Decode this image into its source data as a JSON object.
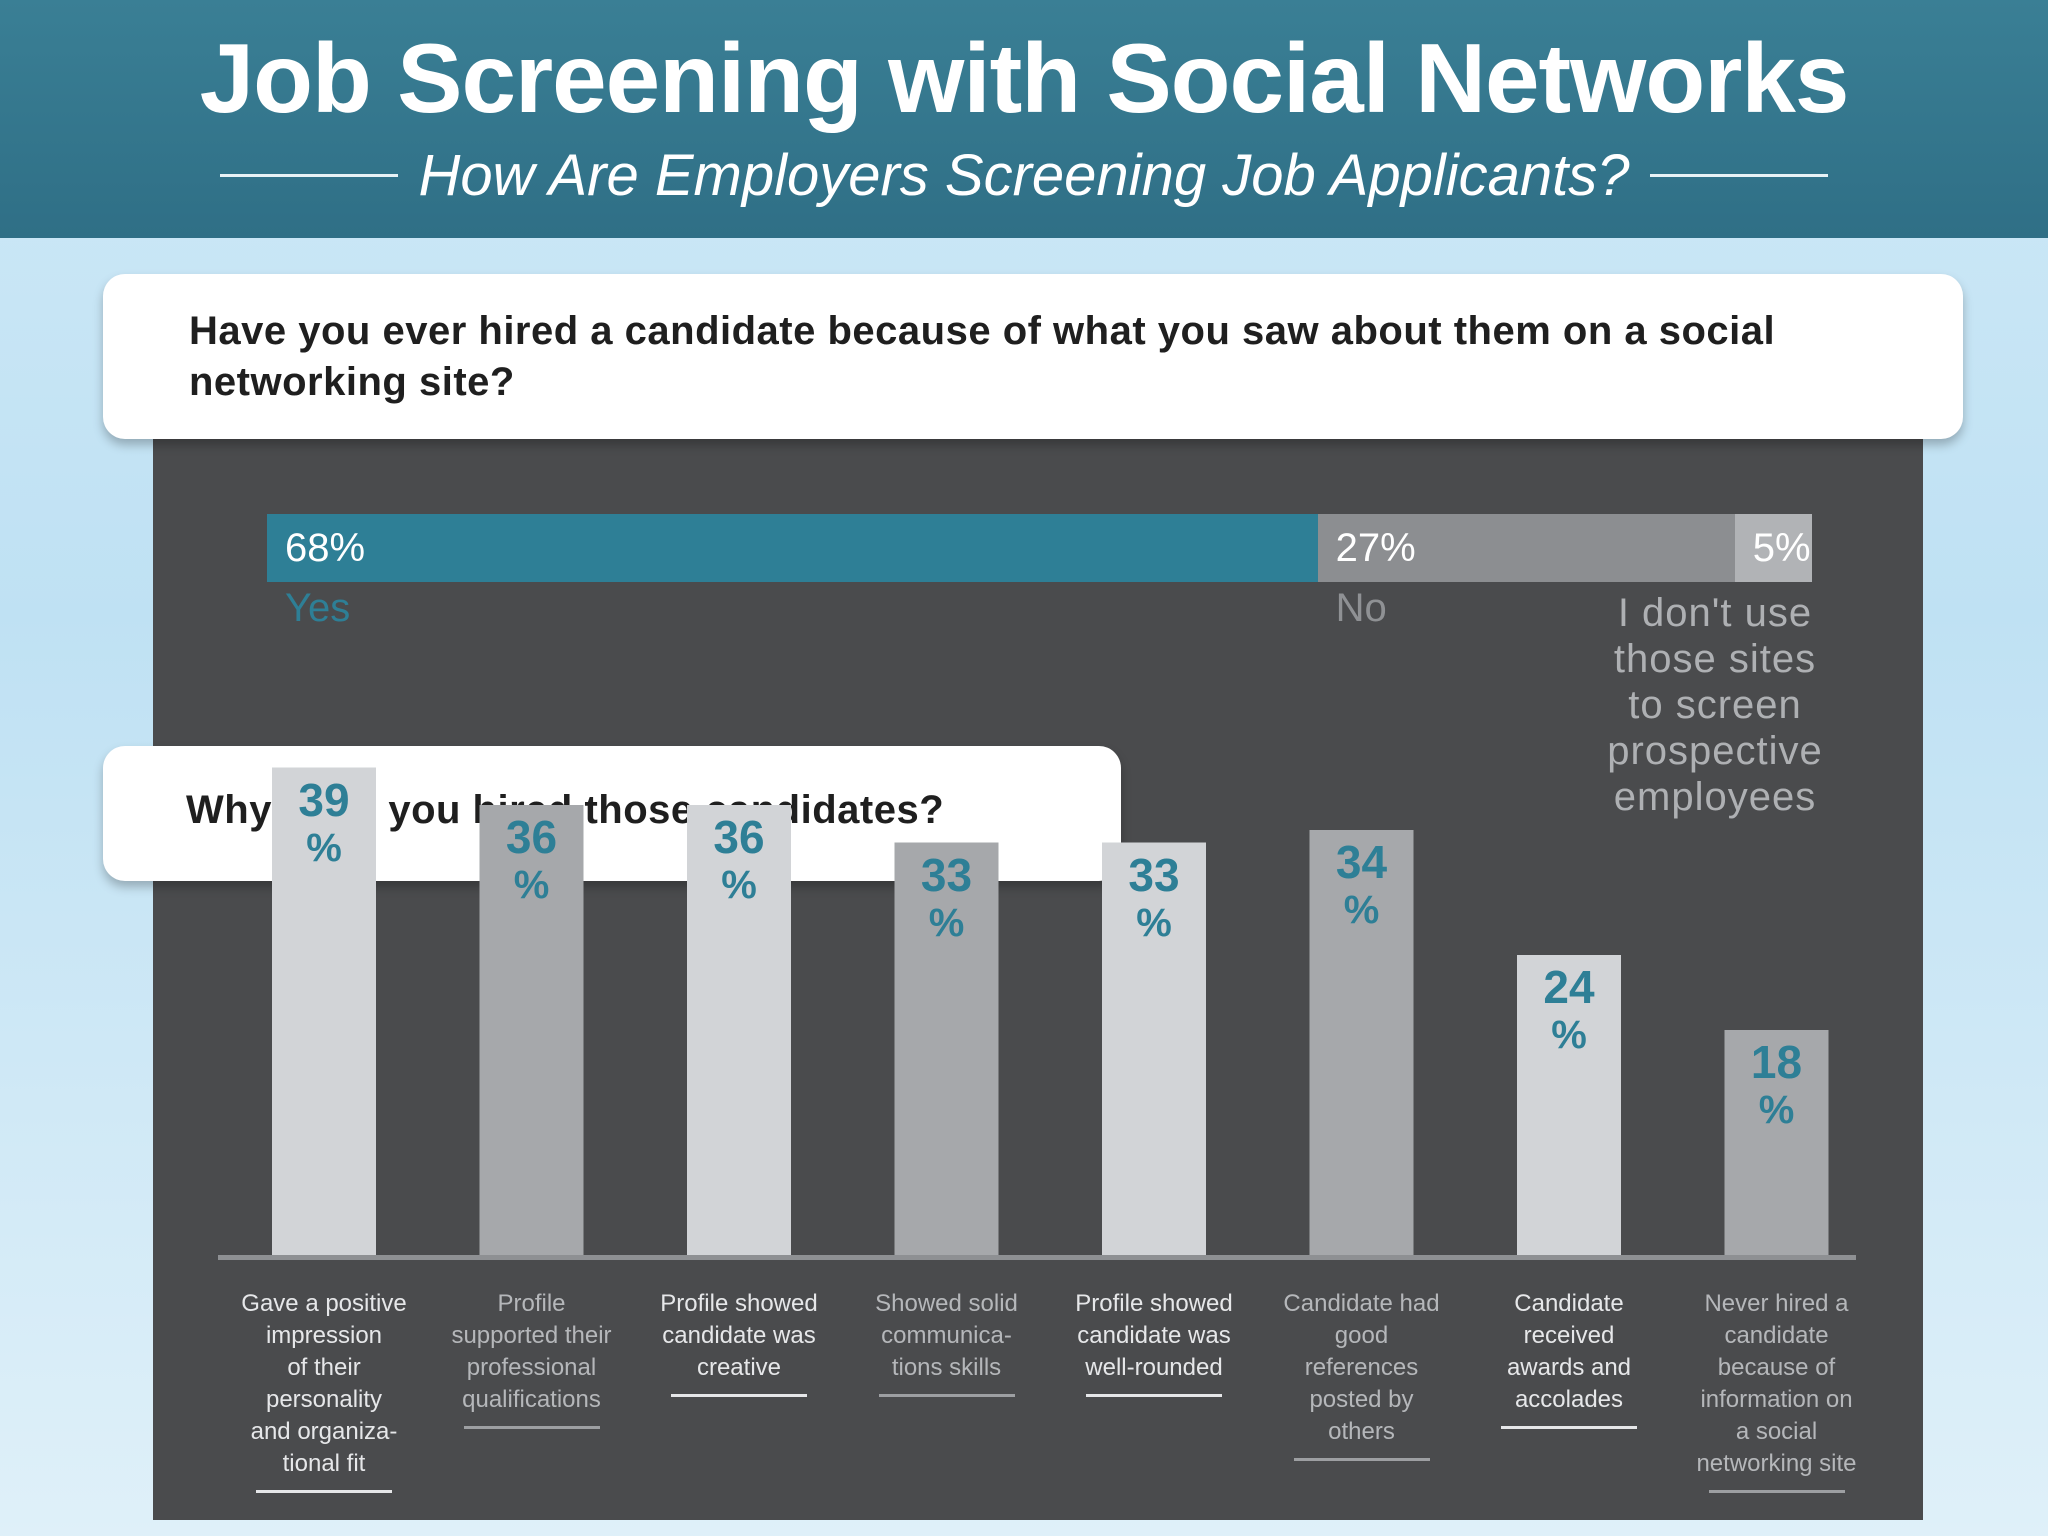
{
  "header": {
    "title": "Job Screening with Social Networks",
    "subtitle": "How Are Employers Screening Job Applicants?"
  },
  "colors": {
    "header_bg": "#2f6f86",
    "panel_bg": "#4a4b4d",
    "accent_teal": "#2e7f96",
    "bar_light": "#d2d4d7",
    "bar_dark": "#a6a8ab"
  },
  "chart_data": [
    {
      "type": "bar",
      "orientation": "stacked-horizontal",
      "title": "Have you ever hired a candidate because of what you saw about them on a social networking site?",
      "segments": [
        {
          "label": "Yes",
          "value": 68,
          "display": "68%"
        },
        {
          "label": "No",
          "value": 27,
          "display": "27%"
        },
        {
          "label": "I don't use those sites to screen prospective employees",
          "value": 5,
          "display": "5%"
        }
      ],
      "label_lines": [
        "I don't use",
        "those sites",
        "to screen",
        "prospective",
        "employees"
      ]
    },
    {
      "type": "bar",
      "title": "Why have you hired those candidates?",
      "ylim": [
        0,
        40
      ],
      "categories": [
        "Gave a positive impression of their personality and organizational fit",
        "Profile supported their professional qualifications",
        "Profile showed candidate was creative",
        "Showed solid communications skills",
        "Profile showed candidate was well-rounded",
        "Candidate had good references posted by others",
        "Candidate received awards and accolades",
        "Never hired a candidate because of information on a social networking site"
      ],
      "values": [
        39,
        36,
        36,
        33,
        33,
        34,
        24,
        18
      ],
      "value_labels": [
        [
          "39",
          "%"
        ],
        [
          "36",
          "%"
        ],
        [
          "36",
          "%"
        ],
        [
          "33",
          "%"
        ],
        [
          "33",
          "%"
        ],
        [
          "34",
          "%"
        ],
        [
          "24",
          "%"
        ],
        [
          "18",
          "%"
        ]
      ],
      "label_lines": [
        [
          "Gave a positive",
          "impression",
          "of their",
          "personality",
          "and organiza-",
          "tional fit"
        ],
        [
          "Profile",
          "supported their",
          "professional",
          "qualifications"
        ],
        [
          "Profile showed",
          "candidate was",
          "creative"
        ],
        [
          "Showed solid",
          "communica-",
          "tions skills"
        ],
        [
          "Profile showed",
          "candidate was",
          "well-rounded"
        ],
        [
          "Candidate had",
          "good",
          "references",
          "posted by",
          "others"
        ],
        [
          "Candidate",
          "received",
          "awards and",
          "accolades"
        ],
        [
          "Never hired a",
          "candidate",
          "because of",
          "information on",
          "a social",
          "networking site"
        ]
      ]
    }
  ]
}
